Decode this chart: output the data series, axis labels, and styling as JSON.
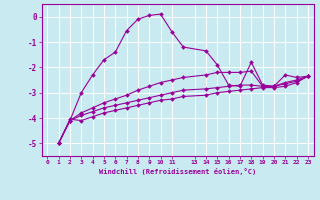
{
  "xlabel": "Windchill (Refroidissement éolien,°C)",
  "bg_color": "#c8eaf0",
  "line_color": "#990099",
  "grid_color": "#ffffff",
  "xlim": [
    -0.5,
    23.5
  ],
  "ylim": [
    -5.5,
    0.5
  ],
  "yticks": [
    0,
    -1,
    -2,
    -3,
    -4,
    -5
  ],
  "xtick_positions": [
    0,
    1,
    2,
    3,
    4,
    5,
    6,
    7,
    8,
    9,
    10,
    11,
    13,
    14,
    15,
    16,
    17,
    18,
    19,
    20,
    21,
    22,
    23
  ],
  "xtick_labels": [
    "0",
    "1",
    "2",
    "3",
    "4",
    "5",
    "6",
    "7",
    "8",
    "9",
    "10",
    "11",
    "13",
    "14",
    "15",
    "16",
    "17",
    "18",
    "19",
    "20",
    "21",
    "22",
    "23"
  ],
  "lines": [
    {
      "x": [
        1,
        2,
        3,
        4,
        5,
        6,
        7,
        8,
        9,
        10,
        11,
        12,
        14,
        15,
        16,
        17,
        18,
        19,
        20,
        21,
        22,
        23
      ],
      "y": [
        -5.0,
        -4.1,
        -3.0,
        -2.3,
        -1.7,
        -1.4,
        -0.55,
        -0.1,
        0.05,
        0.1,
        -0.6,
        -1.2,
        -1.35,
        -1.9,
        -2.7,
        -2.75,
        -1.8,
        -2.7,
        -2.75,
        -2.3,
        -2.4,
        -2.35
      ]
    },
    {
      "x": [
        1,
        2,
        3,
        4,
        5,
        6,
        7,
        8,
        9,
        10,
        11,
        12,
        14,
        15,
        16,
        17,
        18,
        19,
        20,
        21,
        22,
        23
      ],
      "y": [
        -5.0,
        -4.1,
        -3.8,
        -3.6,
        -3.4,
        -3.25,
        -3.1,
        -2.9,
        -2.75,
        -2.6,
        -2.5,
        -2.4,
        -2.3,
        -2.2,
        -2.2,
        -2.2,
        -2.15,
        -2.75,
        -2.75,
        -2.6,
        -2.5,
        -2.35
      ]
    },
    {
      "x": [
        1,
        2,
        3,
        4,
        5,
        6,
        7,
        8,
        9,
        10,
        11,
        12,
        14,
        15,
        16,
        17,
        18,
        19,
        20,
        21,
        22,
        23
      ],
      "y": [
        -5.0,
        -4.1,
        -3.9,
        -3.75,
        -3.6,
        -3.5,
        -3.4,
        -3.3,
        -3.2,
        -3.1,
        -3.0,
        -2.9,
        -2.85,
        -2.8,
        -2.75,
        -2.7,
        -2.7,
        -2.75,
        -2.75,
        -2.65,
        -2.55,
        -2.35
      ]
    },
    {
      "x": [
        1,
        2,
        3,
        4,
        5,
        6,
        7,
        8,
        9,
        10,
        11,
        12,
        14,
        15,
        16,
        17,
        18,
        19,
        20,
        21,
        22,
        23
      ],
      "y": [
        -5.0,
        -4.05,
        -4.1,
        -3.95,
        -3.8,
        -3.7,
        -3.6,
        -3.5,
        -3.4,
        -3.3,
        -3.25,
        -3.15,
        -3.1,
        -3.0,
        -2.95,
        -2.9,
        -2.85,
        -2.8,
        -2.8,
        -2.75,
        -2.6,
        -2.35
      ]
    }
  ]
}
